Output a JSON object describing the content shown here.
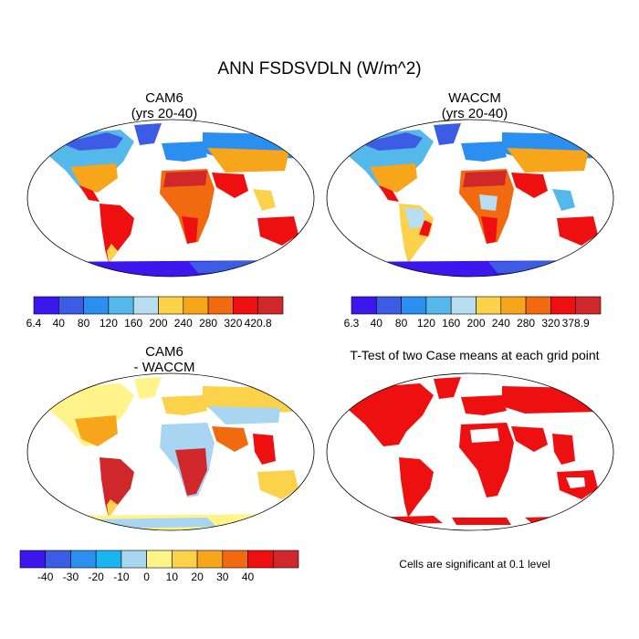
{
  "title": "ANN FSDSVDLN (W/m^2)",
  "panels": [
    {
      "id": "cam6",
      "title_lines": [
        "CAM6",
        "(yrs 20-40)"
      ]
    },
    {
      "id": "waccm",
      "title_lines": [
        "WACCM",
        "(yrs 20-40)"
      ]
    },
    {
      "id": "diff",
      "title_lines": [
        "CAM6",
        "- WACCM"
      ]
    },
    {
      "id": "ttest",
      "title_lines": [
        "T-Test of two Case means at each grid point"
      ]
    }
  ],
  "significance_note": "Cells are significant at 0.1 level",
  "chart_data": [
    {
      "type": "heatmap",
      "title": "CAM6 (yrs 20-40)",
      "colorbar": {
        "labels": [
          "6.4",
          "40",
          "80",
          "120",
          "160",
          "200",
          "240",
          "280",
          "320",
          "420.8"
        ],
        "colors": [
          "#3b17ee",
          "#3c5ce4",
          "#2a8ff0",
          "#55b8ea",
          "#b7def0",
          "#fbd24a",
          "#f7a51a",
          "#f26a10",
          "#ee1010",
          "#d0282a"
        ]
      }
    },
    {
      "type": "heatmap",
      "title": "WACCM (yrs 20-40)",
      "colorbar": {
        "labels": [
          "6.3",
          "40",
          "80",
          "120",
          "160",
          "200",
          "240",
          "280",
          "320",
          "378.9"
        ],
        "colors": [
          "#3b17ee",
          "#3c5ce4",
          "#2a8ff0",
          "#55b8ea",
          "#b7def0",
          "#fbd24a",
          "#f7a51a",
          "#f26a10",
          "#ee1010",
          "#d0282a"
        ]
      }
    },
    {
      "type": "heatmap",
      "title": "CAM6 - WACCM",
      "colorbar": {
        "labels": [
          "-40",
          "-30",
          "-20",
          "-10",
          "0",
          "10",
          "20",
          "30",
          "40"
        ],
        "colors": [
          "#3b17ee",
          "#3c5ce4",
          "#2a8ff0",
          "#1ab4ee",
          "#a8d6f2",
          "#fff38a",
          "#fbd24a",
          "#f7a51a",
          "#f26a10",
          "#ee1010",
          "#d0282a"
        ]
      }
    },
    {
      "type": "heatmap",
      "title": "T-Test of two Case means at each grid point",
      "significant_color": "#ee1010"
    }
  ]
}
